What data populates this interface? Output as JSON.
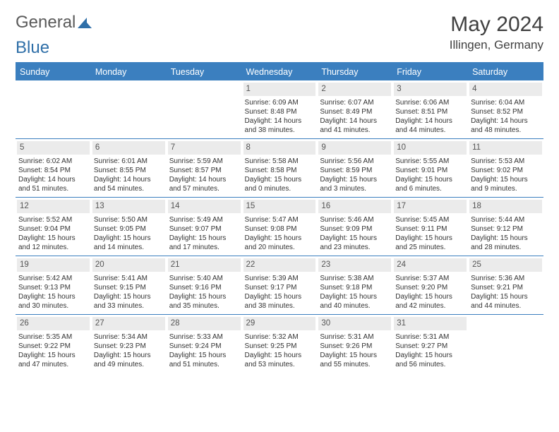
{
  "logo": {
    "text1": "General",
    "text2": "Blue",
    "color1": "#5a5a5a",
    "color2": "#2f6fa8",
    "icon_color": "#2f6fa8"
  },
  "title": "May 2024",
  "location": "Illingen, Germany",
  "header_bg": "#3b7fbf",
  "header_fg": "#ffffff",
  "daynum_bg": "#ebebeb",
  "rule_color": "#3b7fbf",
  "day_headers": [
    "Sunday",
    "Monday",
    "Tuesday",
    "Wednesday",
    "Thursday",
    "Friday",
    "Saturday"
  ],
  "weeks": [
    [
      {
        "n": "",
        "lines": []
      },
      {
        "n": "",
        "lines": []
      },
      {
        "n": "",
        "lines": []
      },
      {
        "n": "1",
        "lines": [
          "Sunrise: 6:09 AM",
          "Sunset: 8:48 PM",
          "Daylight: 14 hours",
          "and 38 minutes."
        ]
      },
      {
        "n": "2",
        "lines": [
          "Sunrise: 6:07 AM",
          "Sunset: 8:49 PM",
          "Daylight: 14 hours",
          "and 41 minutes."
        ]
      },
      {
        "n": "3",
        "lines": [
          "Sunrise: 6:06 AM",
          "Sunset: 8:51 PM",
          "Daylight: 14 hours",
          "and 44 minutes."
        ]
      },
      {
        "n": "4",
        "lines": [
          "Sunrise: 6:04 AM",
          "Sunset: 8:52 PM",
          "Daylight: 14 hours",
          "and 48 minutes."
        ]
      }
    ],
    [
      {
        "n": "5",
        "lines": [
          "Sunrise: 6:02 AM",
          "Sunset: 8:54 PM",
          "Daylight: 14 hours",
          "and 51 minutes."
        ]
      },
      {
        "n": "6",
        "lines": [
          "Sunrise: 6:01 AM",
          "Sunset: 8:55 PM",
          "Daylight: 14 hours",
          "and 54 minutes."
        ]
      },
      {
        "n": "7",
        "lines": [
          "Sunrise: 5:59 AM",
          "Sunset: 8:57 PM",
          "Daylight: 14 hours",
          "and 57 minutes."
        ]
      },
      {
        "n": "8",
        "lines": [
          "Sunrise: 5:58 AM",
          "Sunset: 8:58 PM",
          "Daylight: 15 hours",
          "and 0 minutes."
        ]
      },
      {
        "n": "9",
        "lines": [
          "Sunrise: 5:56 AM",
          "Sunset: 8:59 PM",
          "Daylight: 15 hours",
          "and 3 minutes."
        ]
      },
      {
        "n": "10",
        "lines": [
          "Sunrise: 5:55 AM",
          "Sunset: 9:01 PM",
          "Daylight: 15 hours",
          "and 6 minutes."
        ]
      },
      {
        "n": "11",
        "lines": [
          "Sunrise: 5:53 AM",
          "Sunset: 9:02 PM",
          "Daylight: 15 hours",
          "and 9 minutes."
        ]
      }
    ],
    [
      {
        "n": "12",
        "lines": [
          "Sunrise: 5:52 AM",
          "Sunset: 9:04 PM",
          "Daylight: 15 hours",
          "and 12 minutes."
        ]
      },
      {
        "n": "13",
        "lines": [
          "Sunrise: 5:50 AM",
          "Sunset: 9:05 PM",
          "Daylight: 15 hours",
          "and 14 minutes."
        ]
      },
      {
        "n": "14",
        "lines": [
          "Sunrise: 5:49 AM",
          "Sunset: 9:07 PM",
          "Daylight: 15 hours",
          "and 17 minutes."
        ]
      },
      {
        "n": "15",
        "lines": [
          "Sunrise: 5:47 AM",
          "Sunset: 9:08 PM",
          "Daylight: 15 hours",
          "and 20 minutes."
        ]
      },
      {
        "n": "16",
        "lines": [
          "Sunrise: 5:46 AM",
          "Sunset: 9:09 PM",
          "Daylight: 15 hours",
          "and 23 minutes."
        ]
      },
      {
        "n": "17",
        "lines": [
          "Sunrise: 5:45 AM",
          "Sunset: 9:11 PM",
          "Daylight: 15 hours",
          "and 25 minutes."
        ]
      },
      {
        "n": "18",
        "lines": [
          "Sunrise: 5:44 AM",
          "Sunset: 9:12 PM",
          "Daylight: 15 hours",
          "and 28 minutes."
        ]
      }
    ],
    [
      {
        "n": "19",
        "lines": [
          "Sunrise: 5:42 AM",
          "Sunset: 9:13 PM",
          "Daylight: 15 hours",
          "and 30 minutes."
        ]
      },
      {
        "n": "20",
        "lines": [
          "Sunrise: 5:41 AM",
          "Sunset: 9:15 PM",
          "Daylight: 15 hours",
          "and 33 minutes."
        ]
      },
      {
        "n": "21",
        "lines": [
          "Sunrise: 5:40 AM",
          "Sunset: 9:16 PM",
          "Daylight: 15 hours",
          "and 35 minutes."
        ]
      },
      {
        "n": "22",
        "lines": [
          "Sunrise: 5:39 AM",
          "Sunset: 9:17 PM",
          "Daylight: 15 hours",
          "and 38 minutes."
        ]
      },
      {
        "n": "23",
        "lines": [
          "Sunrise: 5:38 AM",
          "Sunset: 9:18 PM",
          "Daylight: 15 hours",
          "and 40 minutes."
        ]
      },
      {
        "n": "24",
        "lines": [
          "Sunrise: 5:37 AM",
          "Sunset: 9:20 PM",
          "Daylight: 15 hours",
          "and 42 minutes."
        ]
      },
      {
        "n": "25",
        "lines": [
          "Sunrise: 5:36 AM",
          "Sunset: 9:21 PM",
          "Daylight: 15 hours",
          "and 44 minutes."
        ]
      }
    ],
    [
      {
        "n": "26",
        "lines": [
          "Sunrise: 5:35 AM",
          "Sunset: 9:22 PM",
          "Daylight: 15 hours",
          "and 47 minutes."
        ]
      },
      {
        "n": "27",
        "lines": [
          "Sunrise: 5:34 AM",
          "Sunset: 9:23 PM",
          "Daylight: 15 hours",
          "and 49 minutes."
        ]
      },
      {
        "n": "28",
        "lines": [
          "Sunrise: 5:33 AM",
          "Sunset: 9:24 PM",
          "Daylight: 15 hours",
          "and 51 minutes."
        ]
      },
      {
        "n": "29",
        "lines": [
          "Sunrise: 5:32 AM",
          "Sunset: 9:25 PM",
          "Daylight: 15 hours",
          "and 53 minutes."
        ]
      },
      {
        "n": "30",
        "lines": [
          "Sunrise: 5:31 AM",
          "Sunset: 9:26 PM",
          "Daylight: 15 hours",
          "and 55 minutes."
        ]
      },
      {
        "n": "31",
        "lines": [
          "Sunrise: 5:31 AM",
          "Sunset: 9:27 PM",
          "Daylight: 15 hours",
          "and 56 minutes."
        ]
      },
      {
        "n": "",
        "lines": []
      }
    ]
  ]
}
